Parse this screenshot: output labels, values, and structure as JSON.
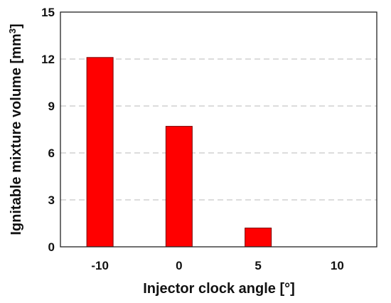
{
  "chart_data": {
    "type": "bar",
    "categories": [
      "-10",
      "0",
      "5",
      "10"
    ],
    "values": [
      12.1,
      7.7,
      1.2,
      0
    ],
    "xlabel": "Injector clock angle [°]",
    "ylabel_main": "Ignitable mixture volume [mm",
    "ylabel_sup": "3",
    "ylabel_end": "]",
    "ylim": [
      0,
      15
    ],
    "yticks": [
      "0",
      "3",
      "6",
      "9",
      "12",
      "15"
    ],
    "grid": "horizontal dashed",
    "bar_color": "#ff0000",
    "bar_edge_color": "#7a0000"
  }
}
